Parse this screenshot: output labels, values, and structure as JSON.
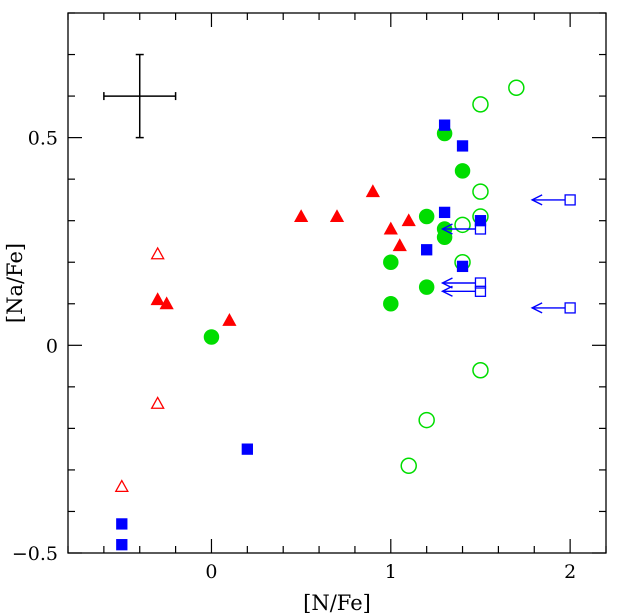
{
  "chart_data": {
    "type": "scatter",
    "title": "",
    "xlabel": "[N/Fe]",
    "ylabel": "[Na/Fe]",
    "xlim": [
      -0.8,
      2.2
    ],
    "ylim": [
      -0.5,
      0.8
    ],
    "xticks": [
      {
        "v": 0,
        "label": "0"
      },
      {
        "v": 1,
        "label": "1"
      },
      {
        "v": 2,
        "label": "2"
      }
    ],
    "yticks": [
      {
        "v": 0.5,
        "label": "0.5"
      },
      {
        "v": 0,
        "label": "0"
      },
      {
        "v": -0.5,
        "label": "−0.5"
      }
    ],
    "x_minor_step": 0.2,
    "y_minor_step": 0.1,
    "error_bar": {
      "x": -0.4,
      "y": 0.6,
      "xerr": 0.2,
      "yerr": 0.1
    },
    "colors": {
      "red": "#ff0000",
      "green": "#00dd00",
      "blue": "#0000ff"
    },
    "series": [
      {
        "marker": "triangle",
        "filled": true,
        "color": "red",
        "points": [
          [
            -0.3,
            0.11
          ],
          [
            -0.25,
            0.1
          ],
          [
            0.1,
            0.06
          ],
          [
            0.5,
            0.31
          ],
          [
            0.7,
            0.31
          ],
          [
            0.9,
            0.37
          ],
          [
            1.0,
            0.28
          ],
          [
            1.05,
            0.24
          ],
          [
            1.1,
            0.3
          ]
        ]
      },
      {
        "marker": "triangle",
        "filled": false,
        "color": "red",
        "points": [
          [
            -0.3,
            0.22
          ],
          [
            -0.3,
            -0.14
          ],
          [
            -0.5,
            -0.34
          ]
        ]
      },
      {
        "marker": "circle",
        "filled": true,
        "color": "green",
        "points": [
          [
            0.0,
            0.02
          ],
          [
            1.0,
            0.2
          ],
          [
            1.0,
            0.1
          ],
          [
            1.2,
            0.31
          ],
          [
            1.2,
            0.14
          ],
          [
            1.3,
            0.51
          ],
          [
            1.3,
            0.28
          ],
          [
            1.3,
            0.26
          ],
          [
            1.4,
            0.42
          ]
        ]
      },
      {
        "marker": "circle",
        "filled": false,
        "color": "green",
        "points": [
          [
            1.1,
            -0.29
          ],
          [
            1.2,
            -0.18
          ],
          [
            1.4,
            0.29
          ],
          [
            1.4,
            0.2
          ],
          [
            1.5,
            0.58
          ],
          [
            1.5,
            0.37
          ],
          [
            1.5,
            0.31
          ],
          [
            1.5,
            -0.06
          ],
          [
            1.7,
            0.62
          ]
        ]
      },
      {
        "marker": "square",
        "filled": true,
        "color": "blue",
        "points": [
          [
            -0.5,
            -0.43
          ],
          [
            -0.5,
            -0.48
          ],
          [
            0.2,
            -0.25
          ],
          [
            1.2,
            0.23
          ],
          [
            1.3,
            0.53
          ],
          [
            1.3,
            0.32
          ],
          [
            1.4,
            0.48
          ],
          [
            1.4,
            0.19
          ],
          [
            1.5,
            0.3
          ]
        ]
      },
      {
        "marker": "square",
        "filled": false,
        "color": "blue",
        "upper_limit_arrow": true,
        "points": [
          [
            1.5,
            0.28
          ],
          [
            1.5,
            0.15
          ],
          [
            1.5,
            0.13
          ],
          [
            2.0,
            0.35
          ],
          [
            2.0,
            0.09
          ]
        ]
      }
    ]
  }
}
